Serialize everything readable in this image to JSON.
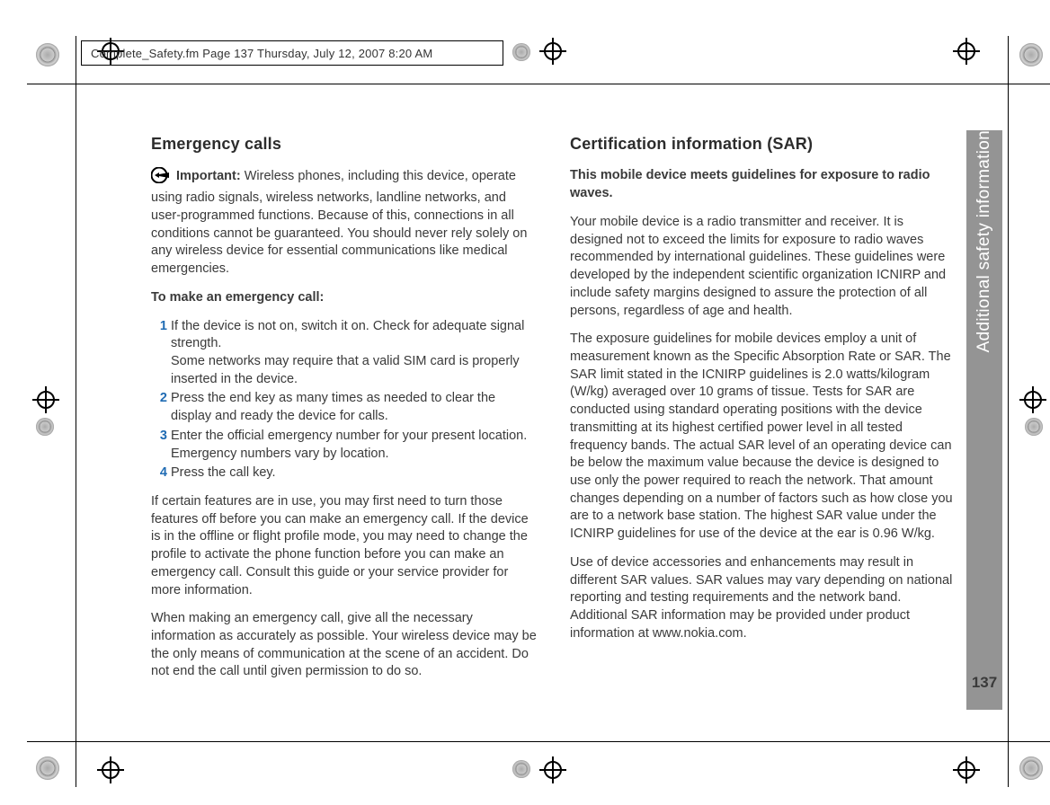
{
  "header": {
    "running_head": "Complete_Safety.fm  Page 137  Thursday, July 12, 2007  8:20 AM"
  },
  "sidebar": {
    "section_title": "Additional safety information"
  },
  "page": {
    "number": "137"
  },
  "colors": {
    "accent_blue": "#1f6bb3",
    "side_tab_bg": "#949494",
    "text": "#3a3a3a",
    "background": "#ffffff"
  },
  "left": {
    "heading": "Emergency calls",
    "important_label": "Important:",
    "important_body": " Wireless phones, including this device, operate using radio signals, wireless networks, landline networks, and user-programmed functions. Because of this, connections in all conditions cannot be guaranteed. You should never rely solely on any wireless device for essential communications like medical emergencies.",
    "subheading": "To make an emergency call:",
    "steps": [
      {
        "n": "1",
        "text": "If the device is not on, switch it on. Check for adequate signal strength.\nSome networks may require that a valid SIM card is properly inserted in the device."
      },
      {
        "n": "2",
        "text": "Press the end key as many times as needed to clear the display and ready the device for calls."
      },
      {
        "n": "3",
        "text": "Enter the official emergency number for your present location. Emergency numbers vary by location."
      },
      {
        "n": "4",
        "text": "Press the call key."
      }
    ],
    "p_after_1": "If certain features are in use, you may first need to turn those features off before you can make an emergency call. If the device is in the offline or flight profile mode, you may need to change the profile to activate the phone function before you can make an emergency call. Consult this guide or your service provider for more information.",
    "p_after_2": "When making an emergency call, give all the necessary information as accurately as possible. Your wireless device may be the only means of communication at the scene of an accident. Do not end the call until given permission to do so."
  },
  "right": {
    "heading": "Certification information (SAR)",
    "lead": "This mobile device meets guidelines for exposure to radio waves.",
    "p1": "Your mobile device is a radio transmitter and receiver. It is designed not to exceed the limits for exposure to radio waves recommended by international guidelines. These guidelines were developed by the independent scientific organization ICNIRP and include safety margins designed to assure the protection of all persons, regardless of age and health.",
    "p2": "The exposure guidelines for mobile devices employ a unit of measurement known as the Specific Absorption Rate or SAR. The SAR limit stated in the ICNIRP guidelines is 2.0 watts/kilogram (W/kg) averaged over 10 grams of tissue. Tests for SAR are conducted using standard operating positions with the device transmitting at its highest certified power level in all tested frequency bands. The actual SAR level of an operating device can be below the maximum value because the device is designed to use only the power required to reach the network. That amount changes depending on a number of factors such as how close you are to a network base station. The highest SAR value under the ICNIRP guidelines for use of the device at the ear is 0.96 W/kg.",
    "p3": "Use of device accessories and enhancements may result in different SAR values. SAR values may vary depending on national reporting and testing requirements and the network band. Additional SAR information may be provided under product information at www.nokia.com."
  }
}
